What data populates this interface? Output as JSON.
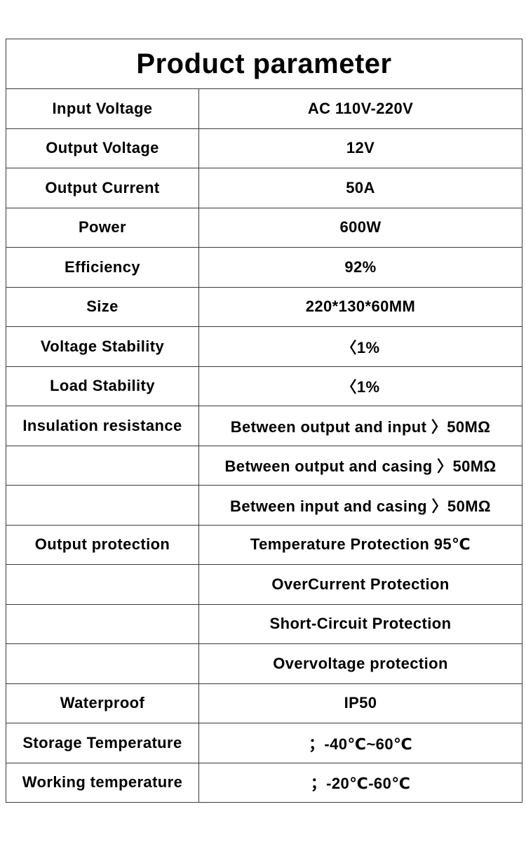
{
  "title": "Product parameter",
  "rows": [
    {
      "label": "Input Voltage",
      "value": "AC 110V-220V"
    },
    {
      "label": "Output Voltage",
      "value": "12V"
    },
    {
      "label": "Output Current",
      "value": "50A"
    },
    {
      "label": "Power",
      "value": "600W"
    },
    {
      "label": "Efficiency",
      "value": "92%"
    },
    {
      "label": "Size",
      "value": "220*130*60MM"
    },
    {
      "label": "Voltage  Stability",
      "value": "〈1%"
    },
    {
      "label": "Load  Stability",
      "value": "〈1%"
    },
    {
      "label": "Insulation resistance",
      "value": "Between output and input 〉50MΩ"
    },
    {
      "label": "",
      "value": "Between output and casing 〉50MΩ"
    },
    {
      "label": "",
      "value": "Between input and casing 〉50MΩ"
    },
    {
      "label": "Output protection",
      "value": "Temperature Protection 95℃"
    },
    {
      "label": "",
      "value": "OverCurrent Protection"
    },
    {
      "label": "",
      "value": "Short-Circuit Protection"
    },
    {
      "label": "",
      "value": "Overvoltage  protection"
    },
    {
      "label": "Waterproof",
      "value": "IP50"
    },
    {
      "label": "Storage  Temperature",
      "value": "；-40℃~60℃"
    },
    {
      "label": "Working temperature",
      "value": "；-20℃-60℃"
    }
  ]
}
